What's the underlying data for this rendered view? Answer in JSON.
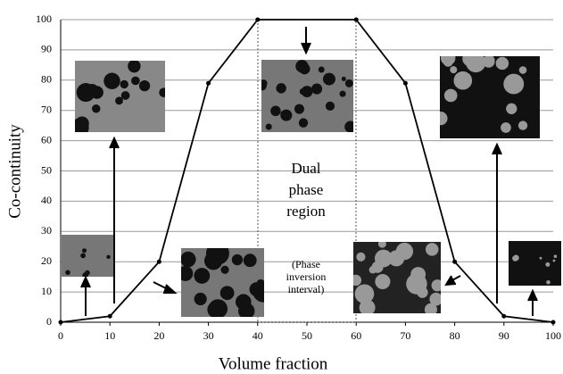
{
  "chart_data": {
    "type": "line",
    "x_label": "Volume fraction",
    "y_label": "Co-continuity",
    "x": [
      0,
      10,
      20,
      30,
      40,
      60,
      70,
      80,
      90,
      100
    ],
    "series": [
      {
        "name": "Co-continuity",
        "color": "#000000",
        "values": [
          0,
          2,
          20,
          79,
          100,
          100,
          79,
          20,
          2,
          0
        ]
      }
    ],
    "xlim": [
      0,
      100
    ],
    "ylim": [
      0,
      100
    ],
    "xticks": [
      0,
      10,
      20,
      30,
      40,
      50,
      60,
      70,
      80,
      90,
      100
    ],
    "yticks": [
      0,
      10,
      20,
      30,
      40,
      50,
      60,
      70,
      80,
      90,
      100
    ],
    "grid": true,
    "annotations": [
      {
        "lines": [
          "Dual",
          "phase",
          "region"
        ]
      },
      {
        "lines": [
          "(Phase",
          "inversion",
          "interval)"
        ]
      }
    ]
  }
}
